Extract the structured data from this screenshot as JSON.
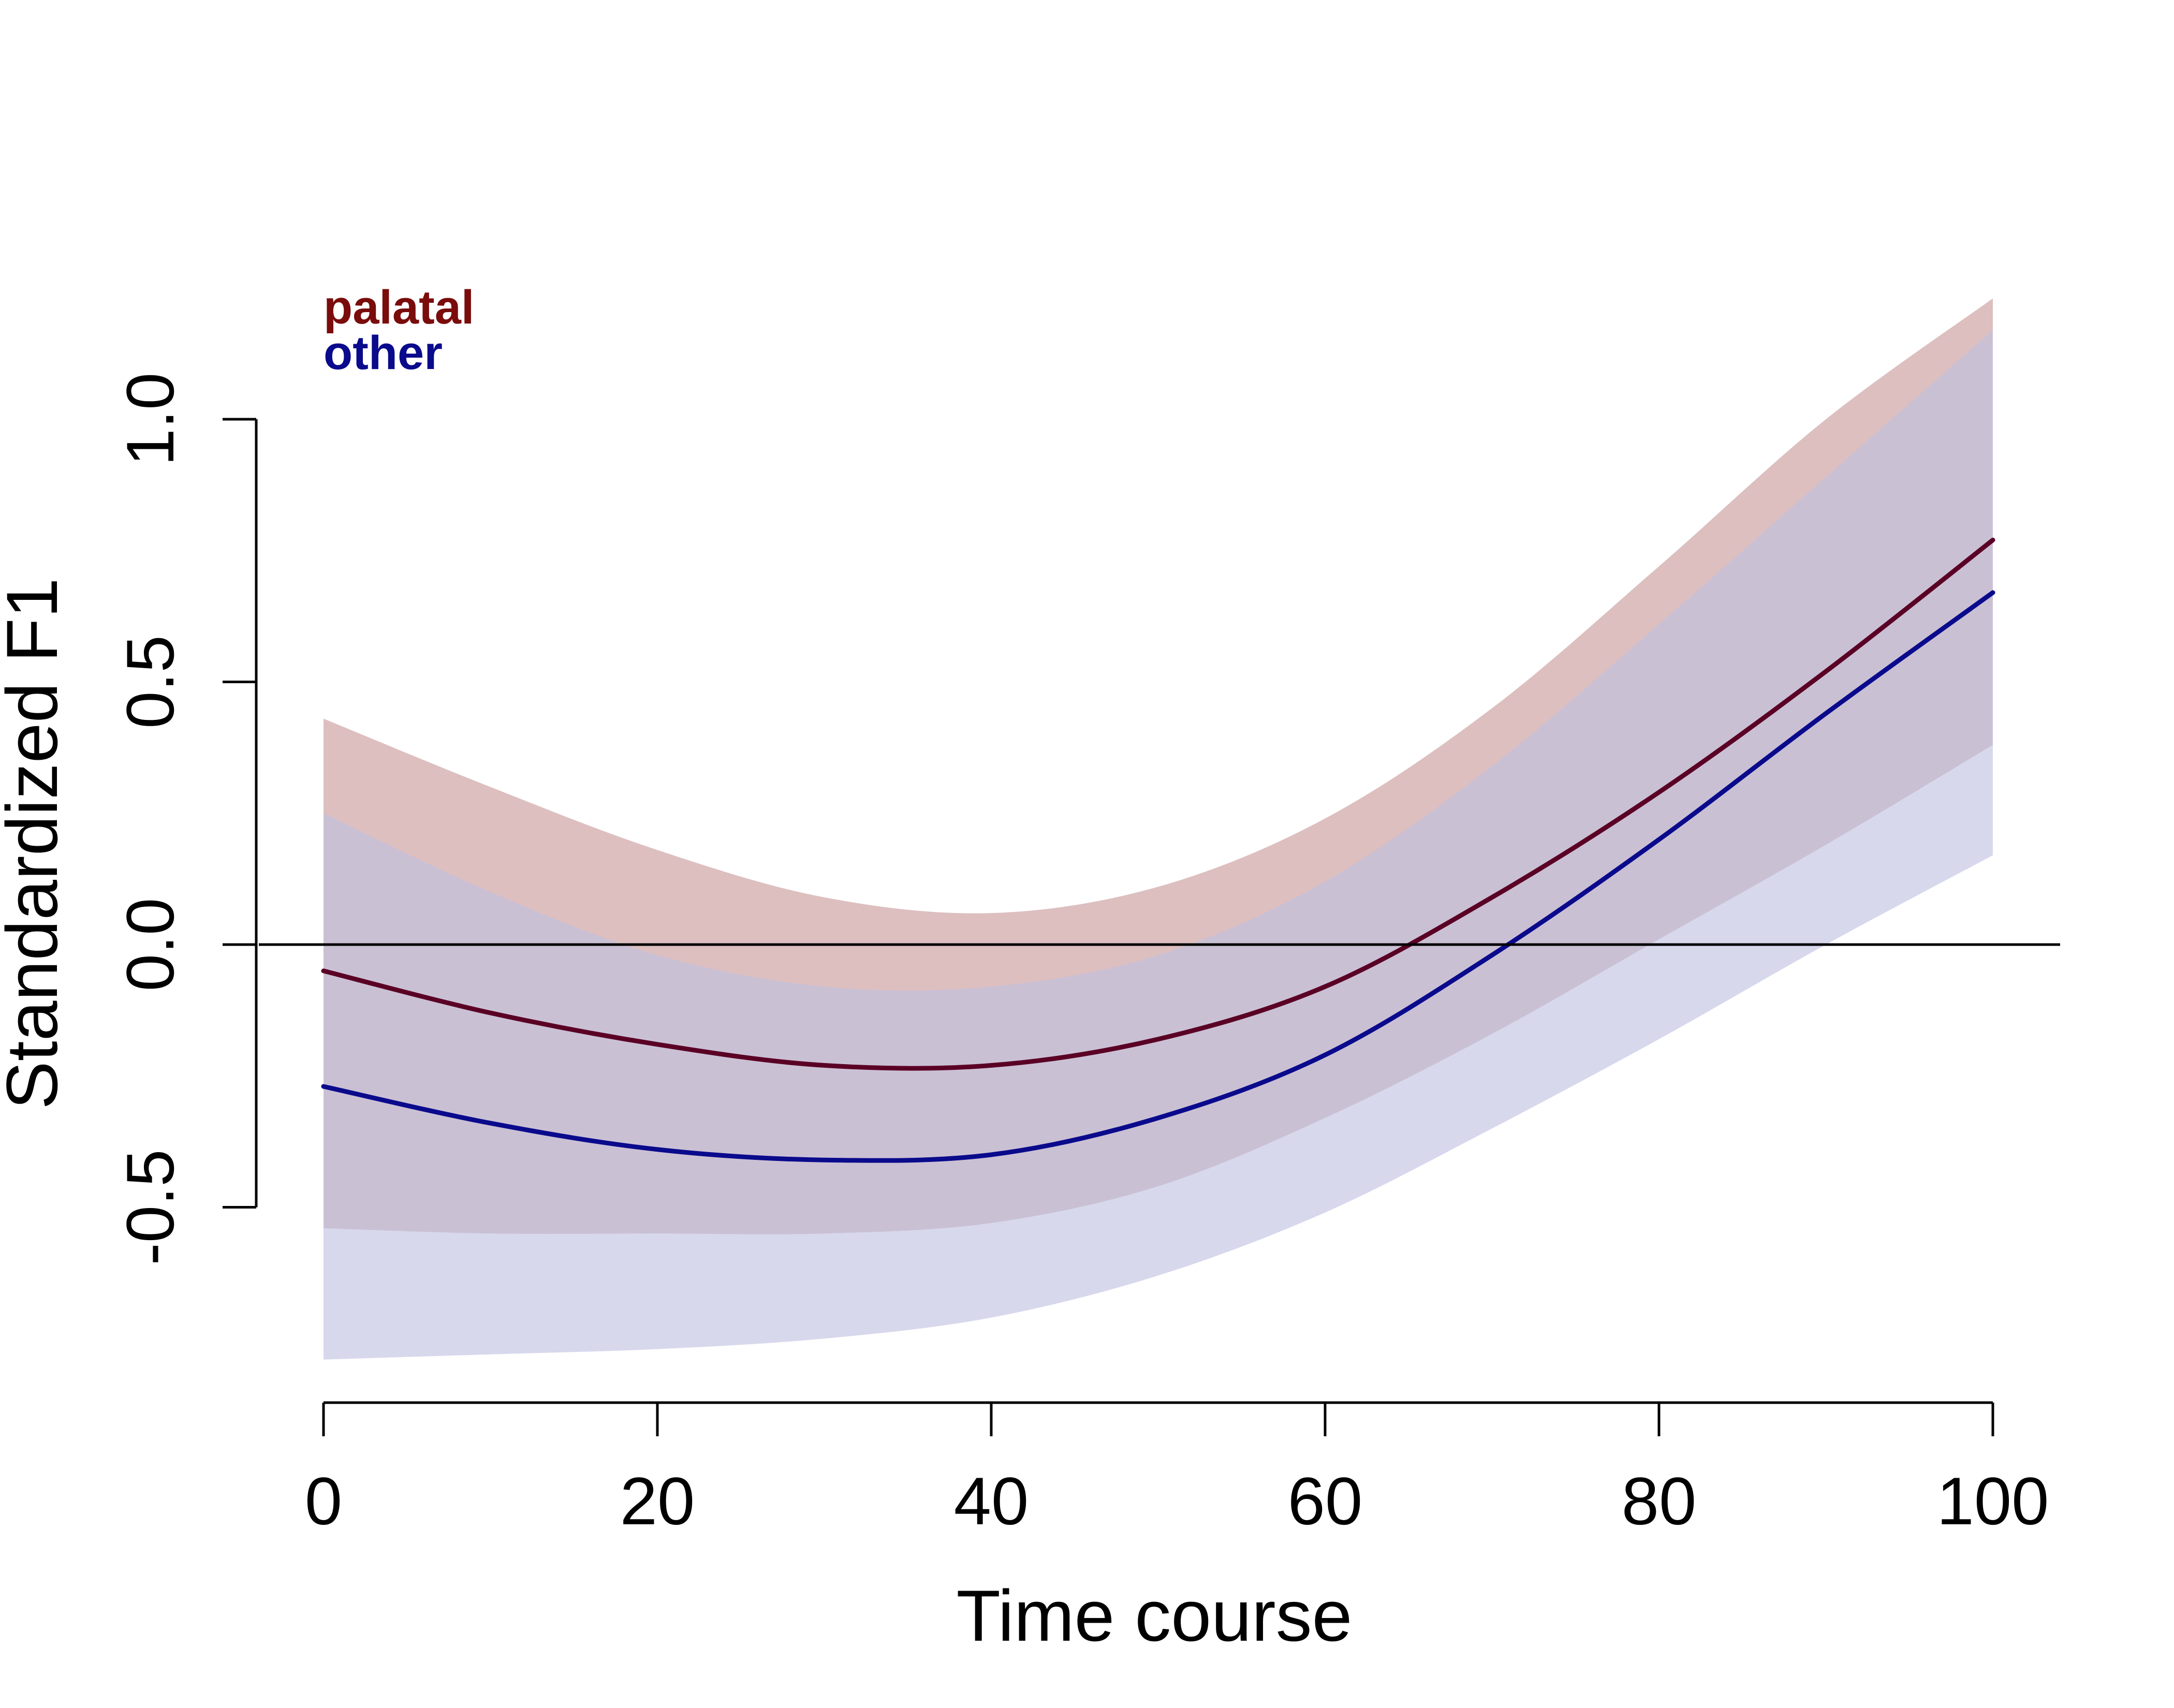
{
  "chart_data": {
    "type": "line",
    "xlabel": "Time course",
    "ylabel": "Standardized F1",
    "xlim": [
      0,
      104
    ],
    "ylim": [
      -0.87,
      1.23
    ],
    "x_ticks": [
      0,
      20,
      40,
      60,
      80,
      100
    ],
    "x_tick_labels": [
      "0",
      "20",
      "40",
      "60",
      "80",
      "100"
    ],
    "y_ticks": [
      -0.5,
      0.0,
      0.5,
      1.0
    ],
    "y_tick_labels": [
      "-0.5",
      "0.0",
      "0.5",
      "1.0"
    ],
    "reference_line_y": 0,
    "grid": false,
    "legend_position": "top-left",
    "x": [
      0,
      10,
      20,
      30,
      40,
      50,
      60,
      70,
      80,
      90,
      100
    ],
    "series": [
      {
        "name": "palatal",
        "color": "#7a0c0c",
        "line_color": "#5a0025",
        "band_color": "#ddbfc0",
        "fit": [
          -0.05,
          -0.13,
          -0.19,
          -0.23,
          -0.23,
          -0.18,
          -0.08,
          0.09,
          0.29,
          0.52,
          0.77
        ],
        "upper": [
          0.43,
          0.3,
          0.18,
          0.09,
          0.06,
          0.11,
          0.24,
          0.45,
          0.72,
          1.0,
          1.23
        ],
        "lower": [
          -0.54,
          -0.55,
          -0.55,
          -0.55,
          -0.53,
          -0.46,
          -0.33,
          -0.17,
          0.01,
          0.19,
          0.38
        ]
      },
      {
        "name": "other",
        "color": "#0a0a8c",
        "line_color": "#0a0a8c",
        "band_color": "#bfc0e0",
        "fit": [
          -0.27,
          -0.34,
          -0.39,
          -0.41,
          -0.4,
          -0.33,
          -0.21,
          -0.02,
          0.2,
          0.44,
          0.67
        ],
        "upper": [
          0.25,
          0.1,
          -0.02,
          -0.08,
          -0.08,
          -0.02,
          0.12,
          0.34,
          0.61,
          0.89,
          1.17
        ],
        "lower": [
          -0.79,
          -0.78,
          -0.77,
          -0.75,
          -0.71,
          -0.63,
          -0.51,
          -0.35,
          -0.18,
          0.0,
          0.17
        ]
      }
    ]
  }
}
